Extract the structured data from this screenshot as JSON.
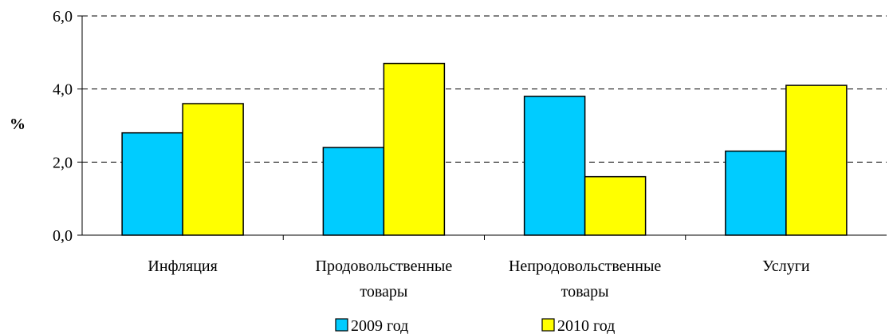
{
  "chart_data": {
    "type": "bar",
    "categories": [
      [
        "Инфляция"
      ],
      [
        "Продовольственные",
        "товары"
      ],
      [
        "Непродовольственные",
        "товары"
      ],
      [
        "Услуги"
      ]
    ],
    "series": [
      {
        "name": "2009 год",
        "color": "#00ccff",
        "values": [
          2.8,
          2.4,
          3.8,
          2.3
        ]
      },
      {
        "name": "2010 год",
        "color": "#ffff00",
        "values": [
          3.6,
          4.7,
          1.6,
          4.1
        ]
      }
    ],
    "ylabel": "%",
    "ylim": [
      0,
      6
    ],
    "yticks": [
      "0,0",
      "2,0",
      "4,0",
      "6,0"
    ],
    "ytick_values": [
      0,
      2,
      4,
      6
    ],
    "grid": "dashed horizontal",
    "legend": "bottom-center"
  }
}
